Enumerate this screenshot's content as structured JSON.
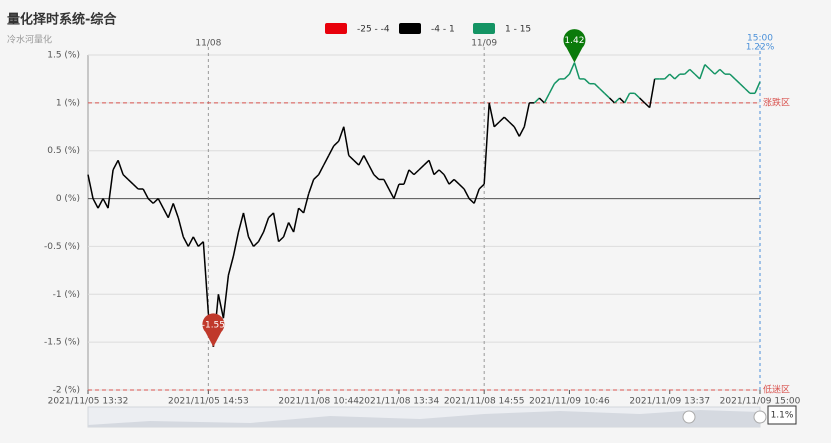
{
  "chart_data": {
    "type": "line",
    "title": "量化择时系统-综合",
    "subtitle": "冷水河量化",
    "categories": [
      "2021/11/05 13:32",
      null,
      null,
      null,
      null,
      null,
      null,
      null,
      null,
      null,
      null,
      null,
      null,
      null,
      null,
      null,
      null,
      null,
      null,
      null,
      null,
      null,
      null,
      null,
      "2021/11/05 14:53",
      null,
      null,
      null,
      null,
      null,
      null,
      null,
      null,
      null,
      null,
      null,
      null,
      null,
      null,
      null,
      null,
      null,
      null,
      null,
      null,
      null,
      "2021/11/08 10:44",
      null,
      null,
      null,
      null,
      null,
      null,
      null,
      null,
      null,
      null,
      null,
      null,
      null,
      null,
      null,
      "2021/11/08 13:34",
      null,
      null,
      null,
      null,
      null,
      null,
      null,
      null,
      null,
      null,
      null,
      null,
      null,
      null,
      null,
      null,
      "2021/11/08 14:55",
      null,
      null,
      null,
      null,
      null,
      null,
      null,
      null,
      null,
      null,
      null,
      null,
      null,
      null,
      null,
      null,
      "2021/11/09 10:46",
      null,
      null,
      null,
      null,
      null,
      null,
      null,
      null,
      null,
      null,
      null,
      null,
      null,
      null,
      null,
      null,
      null,
      null,
      null,
      "2021/11/09 13:37",
      null,
      null,
      null,
      null,
      null,
      null,
      null,
      null,
      null,
      null,
      null,
      null,
      null,
      null,
      null,
      null,
      null,
      "2021/11/09 15:00"
    ],
    "values": [
      0.25,
      0.0,
      -0.1,
      0.0,
      -0.1,
      0.3,
      0.4,
      0.25,
      0.2,
      0.15,
      0.1,
      0.1,
      0.0,
      -0.05,
      0.0,
      -0.1,
      -0.2,
      -0.05,
      -0.2,
      -0.4,
      -0.5,
      -0.4,
      -0.5,
      -0.45,
      -1.2,
      -1.55,
      -1.0,
      -1.25,
      -0.8,
      -0.6,
      -0.35,
      -0.15,
      -0.4,
      -0.5,
      -0.45,
      -0.35,
      -0.2,
      -0.15,
      -0.45,
      -0.4,
      -0.25,
      -0.35,
      -0.1,
      -0.15,
      0.05,
      0.2,
      0.25,
      0.35,
      0.45,
      0.55,
      0.6,
      0.75,
      0.45,
      0.4,
      0.35,
      0.45,
      0.35,
      0.25,
      0.2,
      0.2,
      0.1,
      0.0,
      0.15,
      0.15,
      0.3,
      0.25,
      0.3,
      0.35,
      0.4,
      0.25,
      0.3,
      0.25,
      0.15,
      0.2,
      0.15,
      0.1,
      0.0,
      -0.05,
      0.1,
      0.15,
      1.0,
      0.75,
      0.8,
      0.85,
      0.8,
      0.75,
      0.65,
      0.75,
      1.0,
      1.0,
      1.05,
      1.0,
      1.1,
      1.2,
      1.25,
      1.25,
      1.3,
      1.42,
      1.25,
      1.25,
      1.2,
      1.2,
      1.15,
      1.1,
      1.05,
      1.0,
      1.05,
      1.0,
      1.1,
      1.1,
      1.05,
      1.0,
      0.95,
      1.25,
      1.25,
      1.25,
      1.3,
      1.25,
      1.3,
      1.3,
      1.35,
      1.3,
      1.25,
      1.4,
      1.35,
      1.3,
      1.35,
      1.3,
      1.3,
      1.25,
      1.2,
      1.15,
      1.1,
      1.1,
      1.22
    ],
    "pieces": [
      {
        "label": "-25 - -4",
        "min": -25,
        "max": -4,
        "color": "#e8000b"
      },
      {
        "label": "-4 - 1",
        "min": -4,
        "max": 1,
        "color": "#000000"
      },
      {
        "label": "1 - 15",
        "min": 1,
        "max": 15,
        "color": "#149464"
      }
    ],
    "ylim": [
      -2,
      1.5
    ],
    "yticks": [
      {
        "value": 1.5,
        "label": "1.5 (%)"
      },
      {
        "value": 1,
        "label": "1 (%)"
      },
      {
        "value": 0.5,
        "label": "0.5 (%)"
      },
      {
        "value": 0,
        "label": "0 (%)"
      },
      {
        "value": -0.5,
        "label": "-0.5 (%)"
      },
      {
        "value": -1,
        "label": "-1 (%)"
      },
      {
        "value": -1.5,
        "label": "-1.5 (%)"
      },
      {
        "value": -2,
        "label": "-2 (%)"
      }
    ],
    "grid": true,
    "mark_points": [
      {
        "value": 1.42,
        "color": "#0a7a0a"
      },
      {
        "value": -1.55,
        "color": "#c0392b"
      }
    ],
    "mark_lines": [
      {
        "value": 1,
        "label": "涨跌区",
        "color": "#d9534f"
      },
      {
        "value": -2,
        "label": "低迷区",
        "color": "#d9534f"
      }
    ],
    "day_markers": [
      {
        "label": "11/08",
        "category": "2021/11/05 14:53"
      },
      {
        "label": "11/09",
        "category": "2021/11/08 14:55"
      }
    ],
    "pointer": {
      "time": "15:00",
      "value": 1.22,
      "label": "1.22%",
      "color": "#4a90d9"
    },
    "zoom_label": "1.1%"
  }
}
